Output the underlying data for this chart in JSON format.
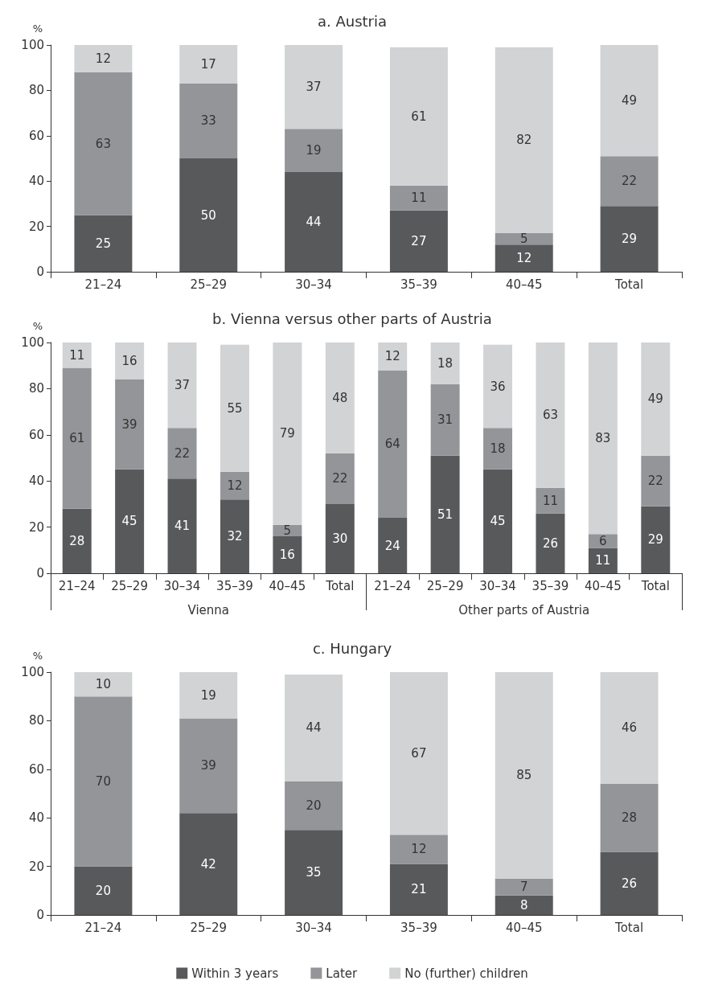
{
  "chart_data": [
    {
      "type": "bar",
      "title": "a. Austria",
      "ylabel": "%",
      "categories": [
        "21–24",
        "25–29",
        "30–34",
        "35–39",
        "40–45",
        "Total"
      ],
      "stacked": true,
      "data_labels": true,
      "ylim": [
        0,
        100
      ],
      "yticks": [
        0,
        20,
        40,
        60,
        80,
        100
      ],
      "grid": false,
      "legend": false,
      "series": [
        {
          "color": "#58595b",
          "values": [
            25,
            50,
            44,
            27,
            12,
            29
          ]
        },
        {
          "color": "#939598",
          "values": [
            63,
            33,
            19,
            11,
            5,
            22
          ]
        },
        {
          "color": "#d1d3d4",
          "values": [
            12,
            17,
            37,
            61,
            82,
            49
          ]
        }
      ]
    },
    {
      "type": "bar",
      "title": "b. Vienna versus other parts of Austria",
      "ylabel": "%",
      "categories": [
        "21–24",
        "25–29",
        "30–34",
        "35–39",
        "40–45",
        "Total",
        "21–24",
        "25–29",
        "30–34",
        "35–39",
        "40–45",
        "Total"
      ],
      "annotations": [
        "Vienna",
        "Other parts of Austria"
      ],
      "stacked": true,
      "data_labels": true,
      "ylim": [
        0,
        100
      ],
      "yticks": [
        0,
        20,
        40,
        60,
        80,
        100
      ],
      "grid": false,
      "legend": false,
      "series": [
        {
          "color": "#58595b",
          "values": [
            28,
            45,
            41,
            32,
            16,
            30,
            24,
            51,
            45,
            26,
            11,
            29
          ]
        },
        {
          "color": "#939598",
          "values": [
            61,
            39,
            22,
            12,
            5,
            22,
            64,
            31,
            18,
            11,
            6,
            22
          ]
        },
        {
          "color": "#d1d3d4",
          "values": [
            11,
            16,
            37,
            55,
            79,
            48,
            12,
            18,
            36,
            63,
            83,
            49
          ]
        }
      ]
    },
    {
      "type": "bar",
      "title": "c. Hungary",
      "ylabel": "%",
      "categories": [
        "21–24",
        "25–29",
        "30–34",
        "35–39",
        "40–45",
        "Total"
      ],
      "stacked": true,
      "data_labels": true,
      "ylim": [
        0,
        100
      ],
      "yticks": [
        0,
        20,
        40,
        60,
        80,
        100
      ],
      "grid": false,
      "legend": "bottom",
      "series": [
        {
          "name": "Within 3 years",
          "color": "#58595b",
          "values": [
            20,
            42,
            35,
            21,
            8,
            26
          ]
        },
        {
          "name": "Later",
          "color": "#939598",
          "values": [
            70,
            39,
            20,
            12,
            7,
            28
          ]
        },
        {
          "name": "No (further) children",
          "color": "#d1d3d4",
          "values": [
            10,
            19,
            44,
            67,
            85,
            46
          ]
        }
      ]
    }
  ]
}
